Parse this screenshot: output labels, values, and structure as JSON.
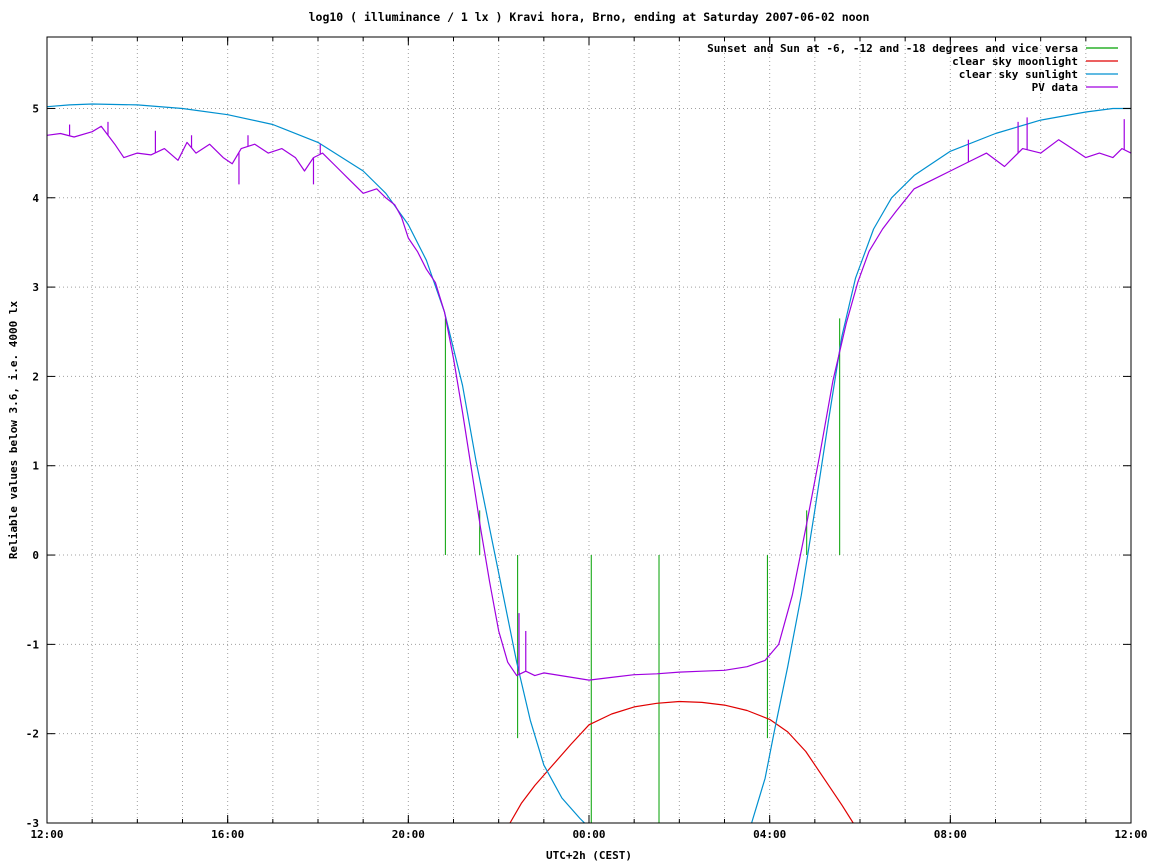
{
  "chart_data": {
    "type": "line",
    "title": "log10 ( illuminance / 1 lx ) Kravi hora, Brno, ending at Saturday 2007-06-02 noon",
    "xlabel": "UTC+2h (CEST)",
    "ylabel": "Reliable values below 3.6, i.e. 4000 lx",
    "x_unit": "hours since 12:00",
    "xlim": [
      0,
      24
    ],
    "ylim": [
      -3,
      5.8
    ],
    "x_ticks": [
      {
        "x": 0,
        "label": "12:00"
      },
      {
        "x": 4,
        "label": "16:00"
      },
      {
        "x": 8,
        "label": "20:00"
      },
      {
        "x": 12,
        "label": "00:00"
      },
      {
        "x": 16,
        "label": "04:00"
      },
      {
        "x": 20,
        "label": "08:00"
      },
      {
        "x": 24,
        "label": "12:00"
      }
    ],
    "x_minor_step": 1,
    "y_ticks": [
      {
        "y": -3,
        "label": "-3"
      },
      {
        "y": -2,
        "label": "-2"
      },
      {
        "y": -1,
        "label": "-1"
      },
      {
        "y": 0,
        "label": "0"
      },
      {
        "y": 1,
        "label": "1"
      },
      {
        "y": 2,
        "label": "2"
      },
      {
        "y": 3,
        "label": "3"
      },
      {
        "y": 4,
        "label": "4"
      },
      {
        "y": 5,
        "label": "5"
      }
    ],
    "grid": true,
    "legend_position": "top-right",
    "series": [
      {
        "name": "Sunset and Sun at -6, -12 and -18 degrees and vice versa",
        "kind": "impulses",
        "color": "#00a000",
        "points": [
          {
            "x": 8.82,
            "y": 2.65
          },
          {
            "x": 9.58,
            "y": 0.5
          },
          {
            "x": 10.42,
            "y": -2.05
          },
          {
            "x": 12.05,
            "y": -3
          },
          {
            "x": 15.95,
            "y": -2.05
          },
          {
            "x": 16.82,
            "y": 0.5
          },
          {
            "x": 17.55,
            "y": 2.65
          },
          {
            "x": 13.55,
            "y": -3
          }
        ]
      },
      {
        "name": "clear sky moonlight",
        "kind": "line",
        "color": "#e00000",
        "points": [
          [
            10.25,
            -3.0
          ],
          [
            10.5,
            -2.78
          ],
          [
            10.8,
            -2.58
          ],
          [
            11.2,
            -2.35
          ],
          [
            11.6,
            -2.12
          ],
          [
            12.0,
            -1.9
          ],
          [
            12.5,
            -1.78
          ],
          [
            13.0,
            -1.7
          ],
          [
            13.5,
            -1.66
          ],
          [
            14.0,
            -1.64
          ],
          [
            14.5,
            -1.65
          ],
          [
            15.0,
            -1.68
          ],
          [
            15.5,
            -1.74
          ],
          [
            16.0,
            -1.84
          ],
          [
            16.4,
            -1.98
          ],
          [
            16.8,
            -2.2
          ],
          [
            17.2,
            -2.5
          ],
          [
            17.6,
            -2.8
          ],
          [
            17.85,
            -3.0
          ]
        ]
      },
      {
        "name": "clear sky sunlight",
        "kind": "line",
        "color": "#0090d0",
        "points": [
          [
            0,
            5.02
          ],
          [
            0.5,
            5.04
          ],
          [
            1,
            5.05
          ],
          [
            2,
            5.04
          ],
          [
            3,
            5.0
          ],
          [
            4,
            4.93
          ],
          [
            5,
            4.82
          ],
          [
            6,
            4.62
          ],
          [
            7,
            4.3
          ],
          [
            7.5,
            4.05
          ],
          [
            8,
            3.7
          ],
          [
            8.4,
            3.3
          ],
          [
            8.8,
            2.72
          ],
          [
            9.2,
            1.9
          ],
          [
            9.5,
            1.05
          ],
          [
            9.8,
            0.3
          ],
          [
            10.1,
            -0.45
          ],
          [
            10.4,
            -1.2
          ],
          [
            10.7,
            -1.85
          ],
          [
            11.0,
            -2.35
          ],
          [
            11.4,
            -2.72
          ],
          [
            11.8,
            -2.95
          ],
          [
            12.2,
            -3.15
          ],
          [
            15.6,
            -3.0
          ],
          [
            15.9,
            -2.5
          ],
          [
            16.1,
            -1.98
          ],
          [
            16.4,
            -1.25
          ],
          [
            16.7,
            -0.45
          ],
          [
            17.0,
            0.5
          ],
          [
            17.3,
            1.5
          ],
          [
            17.6,
            2.45
          ],
          [
            17.9,
            3.1
          ],
          [
            18.3,
            3.65
          ],
          [
            18.7,
            4.0
          ],
          [
            19.2,
            4.25
          ],
          [
            20,
            4.52
          ],
          [
            21,
            4.72
          ],
          [
            22,
            4.87
          ],
          [
            23,
            4.96
          ],
          [
            23.6,
            5.0
          ],
          [
            24,
            5.0
          ]
        ]
      },
      {
        "name": "PV data",
        "kind": "line",
        "color": "#a000e0",
        "points": [
          [
            0,
            4.7
          ],
          [
            0.3,
            4.72
          ],
          [
            0.6,
            4.68
          ],
          [
            1,
            4.74
          ],
          [
            1.2,
            4.8
          ],
          [
            1.5,
            4.6
          ],
          [
            1.7,
            4.45
          ],
          [
            2,
            4.5
          ],
          [
            2.3,
            4.48
          ],
          [
            2.6,
            4.55
          ],
          [
            2.9,
            4.42
          ],
          [
            3.1,
            4.62
          ],
          [
            3.3,
            4.5
          ],
          [
            3.6,
            4.6
          ],
          [
            3.9,
            4.45
          ],
          [
            4.1,
            4.38
          ],
          [
            4.3,
            4.55
          ],
          [
            4.6,
            4.6
          ],
          [
            4.9,
            4.5
          ],
          [
            5.2,
            4.55
          ],
          [
            5.5,
            4.45
          ],
          [
            5.7,
            4.3
          ],
          [
            5.9,
            4.45
          ],
          [
            6.1,
            4.5
          ],
          [
            6.4,
            4.35
          ],
          [
            6.7,
            4.2
          ],
          [
            7.0,
            4.05
          ],
          [
            7.3,
            4.1
          ],
          [
            7.5,
            4.0
          ],
          [
            7.7,
            3.92
          ],
          [
            7.85,
            3.78
          ],
          [
            8.0,
            3.55
          ],
          [
            8.2,
            3.4
          ],
          [
            8.4,
            3.2
          ],
          [
            8.6,
            3.05
          ],
          [
            8.8,
            2.72
          ],
          [
            9.0,
            2.2
          ],
          [
            9.2,
            1.6
          ],
          [
            9.4,
            0.95
          ],
          [
            9.6,
            0.3
          ],
          [
            9.8,
            -0.3
          ],
          [
            10.0,
            -0.85
          ],
          [
            10.2,
            -1.2
          ],
          [
            10.4,
            -1.35
          ],
          [
            10.6,
            -1.3
          ],
          [
            10.8,
            -1.35
          ],
          [
            11.0,
            -1.32
          ],
          [
            11.5,
            -1.36
          ],
          [
            12.0,
            -1.4
          ],
          [
            12.5,
            -1.37
          ],
          [
            13.0,
            -1.34
          ],
          [
            13.5,
            -1.33
          ],
          [
            14.0,
            -1.31
          ],
          [
            14.5,
            -1.3
          ],
          [
            15.0,
            -1.29
          ],
          [
            15.5,
            -1.25
          ],
          [
            15.9,
            -1.18
          ],
          [
            16.2,
            -1.0
          ],
          [
            16.5,
            -0.45
          ],
          [
            16.8,
            0.3
          ],
          [
            17.1,
            1.1
          ],
          [
            17.4,
            1.95
          ],
          [
            17.7,
            2.6
          ],
          [
            17.95,
            3.05
          ],
          [
            18.2,
            3.4
          ],
          [
            18.5,
            3.65
          ],
          [
            18.8,
            3.85
          ],
          [
            19.2,
            4.1
          ],
          [
            19.6,
            4.2
          ],
          [
            20.0,
            4.3
          ],
          [
            20.4,
            4.4
          ],
          [
            20.8,
            4.5
          ],
          [
            21.2,
            4.35
          ],
          [
            21.6,
            4.55
          ],
          [
            22.0,
            4.5
          ],
          [
            22.4,
            4.65
          ],
          [
            22.7,
            4.55
          ],
          [
            23.0,
            4.45
          ],
          [
            23.3,
            4.5
          ],
          [
            23.6,
            4.45
          ],
          [
            23.8,
            4.55
          ],
          [
            24.0,
            4.5
          ]
        ],
        "spikes": [
          {
            "x": 0.5,
            "y": 4.82
          },
          {
            "x": 1.35,
            "y": 4.85
          },
          {
            "x": 2.4,
            "y": 4.75
          },
          {
            "x": 3.2,
            "y": 4.7
          },
          {
            "x": 4.25,
            "y": 4.15
          },
          {
            "x": 4.45,
            "y": 4.7
          },
          {
            "x": 5.9,
            "y": 4.15
          },
          {
            "x": 6.05,
            "y": 4.6
          },
          {
            "x": 10.45,
            "y": -0.65
          },
          {
            "x": 10.6,
            "y": -0.85
          },
          {
            "x": 20.4,
            "y": 4.65
          },
          {
            "x": 21.5,
            "y": 4.85
          },
          {
            "x": 21.7,
            "y": 4.9
          },
          {
            "x": 23.85,
            "y": 4.88
          }
        ]
      }
    ]
  }
}
